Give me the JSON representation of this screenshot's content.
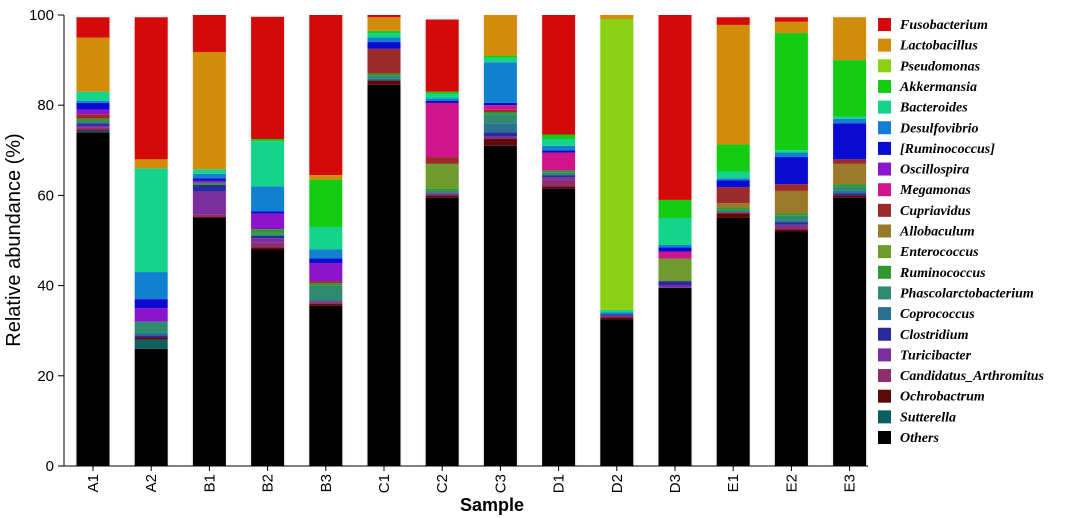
{
  "chart_data": {
    "type": "bar",
    "stacked": true,
    "xlabel": "Sample",
    "ylabel": "Relative abundance (%)",
    "ylim": [
      0,
      100
    ],
    "yticks": [
      0,
      20,
      40,
      60,
      80,
      100
    ],
    "grid": false,
    "legend_position": "right",
    "categories": [
      "A1",
      "A2",
      "B1",
      "B2",
      "B3",
      "C1",
      "C2",
      "C3",
      "D1",
      "D2",
      "D3",
      "E1",
      "E2",
      "E3"
    ],
    "series": [
      {
        "name": "Others",
        "color": "#000000",
        "values": [
          74.0,
          26.0,
          55.0,
          48.0,
          35.5,
          84.5,
          59.5,
          71.0,
          61.5,
          32.5,
          39.5,
          55.0,
          52.0,
          59.5
        ]
      },
      {
        "name": "Sutterella",
        "color": "#0b5f5f",
        "values": [
          0.3,
          2.0,
          0.0,
          0.0,
          0.0,
          0.0,
          0.0,
          0.0,
          0.0,
          0.0,
          0.0,
          0.0,
          0.0,
          0.0
        ]
      },
      {
        "name": "Ochrobactrum",
        "color": "#5c0a0a",
        "values": [
          0.2,
          0.5,
          0.3,
          0.5,
          0.5,
          1.0,
          0.5,
          1.5,
          0.5,
          0.5,
          0.0,
          1.0,
          0.5,
          0.5
        ]
      },
      {
        "name": "Candidatus_Arthromitus",
        "color": "#8f2e6e",
        "values": [
          0.5,
          0.0,
          0.5,
          1.0,
          0.5,
          0.0,
          0.0,
          0.5,
          1.5,
          0.3,
          0.0,
          0.3,
          0.5,
          0.0
        ]
      },
      {
        "name": "Turicibacter",
        "color": "#7b2ea0",
        "values": [
          0.5,
          0.0,
          5.0,
          1.0,
          0.0,
          0.0,
          0.5,
          0.0,
          0.5,
          0.0,
          0.5,
          0.0,
          0.5,
          0.0
        ]
      },
      {
        "name": "Clostridium",
        "color": "#2a2a9c",
        "values": [
          0.5,
          0.5,
          1.5,
          0.5,
          0.0,
          0.0,
          0.0,
          1.0,
          0.5,
          0.3,
          1.0,
          0.0,
          0.5,
          0.5
        ]
      },
      {
        "name": "Coprococcus",
        "color": "#2a7090",
        "values": [
          0.0,
          0.5,
          0.0,
          0.0,
          0.5,
          0.5,
          0.0,
          2.0,
          0.0,
          0.0,
          0.0,
          0.0,
          0.5,
          0.5
        ]
      },
      {
        "name": "Phascolarctobacterium",
        "color": "#2e8b6e",
        "values": [
          0.5,
          2.5,
          0.0,
          0.5,
          3.0,
          0.5,
          0.5,
          2.0,
          0.5,
          0.0,
          0.0,
          0.5,
          1.0,
          1.0
        ]
      },
      {
        "name": "Ruminococcus",
        "color": "#2e9a2e",
        "values": [
          0.5,
          0.0,
          0.5,
          1.0,
          0.5,
          0.5,
          0.5,
          0.5,
          0.5,
          0.0,
          0.0,
          0.5,
          0.5,
          0.5
        ]
      },
      {
        "name": "Enterococcus",
        "color": "#6e9a2e",
        "values": [
          0.0,
          0.0,
          0.0,
          0.0,
          0.0,
          0.0,
          5.5,
          0.0,
          0.0,
          0.0,
          5.0,
          0.0,
          0.0,
          0.0
        ]
      },
      {
        "name": "Allobaculum",
        "color": "#9a7a2a",
        "values": [
          0.0,
          0.0,
          0.0,
          0.0,
          0.0,
          0.0,
          0.0,
          0.0,
          0.0,
          0.0,
          0.0,
          1.0,
          5.0,
          4.5
        ]
      },
      {
        "name": "Cupriavidus",
        "color": "#9c2a2a",
        "values": [
          1.0,
          0.0,
          0.0,
          0.0,
          0.5,
          5.5,
          1.5,
          0.5,
          0.0,
          0.0,
          0.0,
          3.5,
          1.5,
          1.0
        ]
      },
      {
        "name": "Megamonas",
        "color": "#d0148c",
        "values": [
          0.0,
          0.0,
          0.0,
          0.0,
          0.0,
          0.0,
          12.0,
          1.0,
          4.0,
          0.0,
          1.5,
          0.0,
          0.0,
          0.0
        ]
      },
      {
        "name": "Oscillospira",
        "color": "#8c14cc",
        "values": [
          1.0,
          3.0,
          0.5,
          3.5,
          4.0,
          0.0,
          0.0,
          0.0,
          0.0,
          0.0,
          0.0,
          0.0,
          0.0,
          0.0
        ]
      },
      {
        "name": "[Ruminococcus]",
        "color": "#0a0ad0",
        "values": [
          1.5,
          2.0,
          0.5,
          0.5,
          1.0,
          1.5,
          0.5,
          0.5,
          0.5,
          0.0,
          1.0,
          1.5,
          6.0,
          8.0
        ]
      },
      {
        "name": "Desulfovibrio",
        "color": "#1280d0",
        "values": [
          0.5,
          6.0,
          1.0,
          5.5,
          2.0,
          1.0,
          0.5,
          9.0,
          1.0,
          0.5,
          0.5,
          0.5,
          1.0,
          1.0
        ]
      },
      {
        "name": "Bacteroides",
        "color": "#14d48c",
        "values": [
          2.0,
          23.0,
          1.0,
          10.0,
          5.0,
          1.0,
          1.0,
          1.0,
          1.5,
          0.5,
          6.0,
          1.5,
          0.5,
          0.5
        ]
      },
      {
        "name": "Akkermansia",
        "color": "#14cc14",
        "values": [
          0.0,
          0.0,
          0.0,
          0.5,
          10.5,
          0.5,
          0.5,
          0.5,
          1.0,
          0.0,
          4.0,
          6.0,
          26.0,
          12.5
        ]
      },
      {
        "name": "Pseudomonas",
        "color": "#8cd014",
        "values": [
          0.0,
          0.0,
          0.0,
          0.0,
          0.0,
          0.0,
          0.0,
          0.0,
          0.0,
          64.5,
          0.0,
          0.0,
          0.0,
          0.0
        ]
      },
      {
        "name": "Lactobacillus",
        "color": "#d08c0a",
        "values": [
          12.0,
          2.0,
          26.0,
          0.0,
          1.0,
          3.0,
          0.0,
          9.5,
          0.0,
          1.0,
          0.0,
          26.5,
          2.5,
          9.5
        ]
      },
      {
        "name": "Fusobacterium",
        "color": "#d40a0a",
        "values": [
          4.5,
          31.5,
          8.2,
          27.1,
          35.5,
          0.5,
          16.0,
          0.5,
          27.0,
          0.0,
          41.0,
          1.7,
          1.0,
          0.0
        ]
      }
    ]
  }
}
